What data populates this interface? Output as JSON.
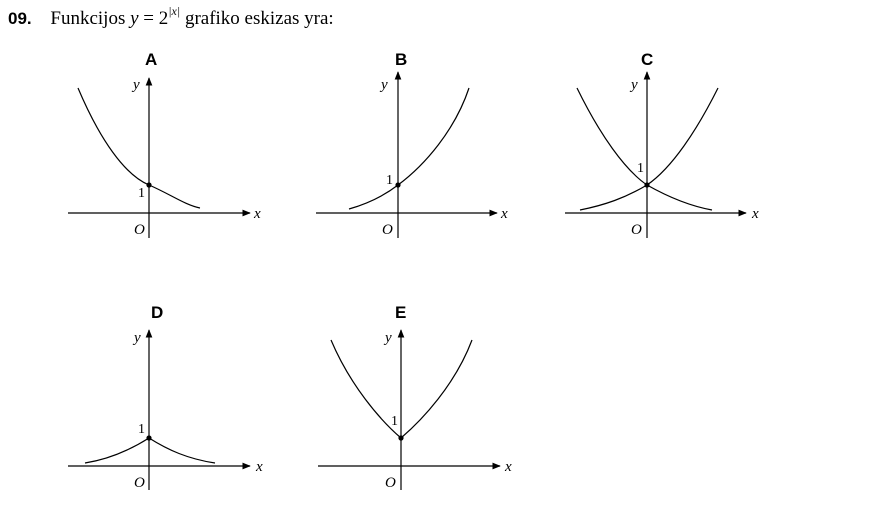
{
  "question": {
    "number": "09.",
    "text_before": "Funkcijos",
    "fn_y": "y",
    "fn_eq": "= 2",
    "fn_exp": "|x|",
    "text_after": "grafiko eskizas yra:"
  },
  "chart_data": [
    {
      "type": "line",
      "label": "A",
      "formula": "y = 2^(-x)",
      "xlabel": "x",
      "ylabel": "y",
      "origin": "O",
      "y_intercept": "1"
    },
    {
      "type": "line",
      "label": "B",
      "formula": "y = 2^x",
      "xlabel": "x",
      "ylabel": "y",
      "origin": "O",
      "y_intercept": "1"
    },
    {
      "type": "line",
      "label": "C",
      "formula": "y = 2^x and y = 2^(-x)",
      "xlabel": "x",
      "ylabel": "y",
      "origin": "O",
      "y_intercept": "1"
    },
    {
      "type": "line",
      "label": "D",
      "formula": "y = 2^(-|x|)",
      "xlabel": "x",
      "ylabel": "y",
      "origin": "O",
      "y_intercept": "1"
    },
    {
      "type": "line",
      "label": "E",
      "formula": "y = 2^|x|",
      "xlabel": "x",
      "ylabel": "y",
      "origin": "O",
      "y_intercept": "1"
    }
  ]
}
